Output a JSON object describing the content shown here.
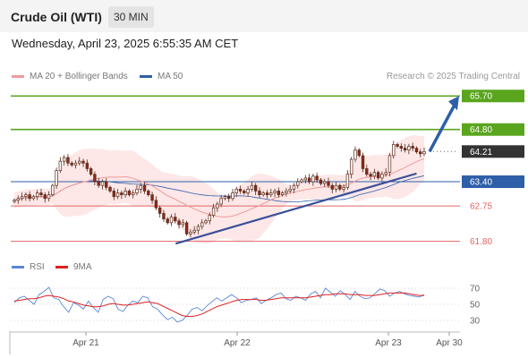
{
  "header": {
    "title": "Crude Oil (WTI)",
    "timeframe": "30 MIN"
  },
  "timestamp": "Wednesday, April 23, 2025 6:55:35 AM CET",
  "legend": {
    "ma20_bb": "MA 20 + Bollinger Bands",
    "ma50": "MA 50"
  },
  "credit": "Research © 2025 Trading Central",
  "rsi_legend": {
    "rsi": "RSI",
    "ma9": "9MA"
  },
  "colors": {
    "green": "#5aa51e",
    "red": "#e06666",
    "blue": "#2e5fa8",
    "dark": "#333333",
    "bb_fill": "#fde3e3",
    "ma20": "#f09a9a",
    "ma50": "#2e5fa8",
    "rsi": "#5b86d6",
    "rsi_ma": "#e02020"
  },
  "chart_data": [
    {
      "type": "candlestick",
      "title": "Crude Oil (WTI)",
      "interval": "30 MIN",
      "x_labels": [
        "Apr 21",
        "Apr 22",
        "Apr 23",
        "Apr 30"
      ],
      "ylim": [
        61.6,
        65.85
      ],
      "price_levels": [
        {
          "value": 65.7,
          "label": "65.70",
          "kind": "resistance",
          "color": "#5aa51e"
        },
        {
          "value": 64.8,
          "label": "64.80",
          "kind": "resistance",
          "color": "#5aa51e"
        },
        {
          "value": 64.21,
          "label": "64.21",
          "kind": "last_price",
          "color": "#333333"
        },
        {
          "value": 63.4,
          "label": "63.40",
          "kind": "pivot",
          "color": "#2e5fa8"
        },
        {
          "value": 62.75,
          "label": "62.75",
          "kind": "support",
          "color": "#e06666"
        },
        {
          "value": 61.8,
          "label": "61.80",
          "kind": "support",
          "color": "#e06666"
        }
      ],
      "close_series": [
        62.9,
        62.95,
        63.0,
        63.05,
        62.95,
        63.0,
        63.1,
        63.05,
        62.95,
        63.05,
        63.3,
        63.7,
        63.95,
        64.05,
        63.9,
        63.85,
        63.9,
        63.95,
        63.9,
        63.75,
        63.6,
        63.4,
        63.3,
        63.4,
        63.25,
        63.15,
        63.0,
        63.1,
        63.05,
        63.15,
        63.05,
        63.1,
        63.2,
        63.3,
        63.15,
        63.05,
        62.9,
        62.7,
        62.55,
        62.4,
        62.3,
        62.45,
        62.35,
        62.25,
        62.3,
        62.0,
        62.05,
        62.1,
        62.2,
        62.3,
        62.35,
        62.5,
        62.7,
        62.8,
        62.95,
        63.0,
        62.95,
        63.1,
        63.2,
        63.15,
        63.1,
        63.2,
        63.3,
        63.15,
        63.05,
        63.1,
        63.05,
        63.1,
        63.15,
        63.05,
        63.1,
        63.15,
        63.2,
        63.3,
        63.4,
        63.45,
        63.5,
        63.4,
        63.55,
        63.45,
        63.35,
        63.4,
        63.3,
        63.2,
        63.3,
        63.2,
        63.25,
        63.6,
        64.0,
        64.25,
        64.1,
        63.75,
        63.6,
        63.55,
        63.65,
        63.5,
        63.6,
        63.65,
        64.1,
        64.4,
        64.35,
        64.3,
        64.25,
        64.35,
        64.3,
        64.2,
        64.15,
        64.21
      ],
      "last_price": 64.21,
      "projection_target": 65.7
    },
    {
      "type": "line",
      "title": "RSI",
      "series": [
        {
          "name": "RSI",
          "values": [
            52,
            58,
            60,
            55,
            50,
            62,
            66,
            71,
            58,
            56,
            47,
            40,
            52,
            49,
            44,
            54,
            46,
            40,
            56,
            60,
            57,
            44,
            41,
            49,
            54,
            52,
            60,
            58,
            47,
            44,
            37,
            31,
            34,
            28,
            30,
            36,
            44,
            46,
            42,
            48,
            53,
            58,
            54,
            58,
            62,
            58,
            52,
            55,
            56,
            58,
            51,
            55,
            58,
            62,
            64,
            57,
            55,
            60,
            58,
            55,
            63,
            66,
            58,
            70,
            65,
            60,
            67,
            62,
            56,
            66,
            60,
            57,
            58,
            63,
            69,
            67,
            60,
            64,
            66,
            63,
            61,
            60,
            59,
            62
          ]
        },
        {
          "name": "9MA",
          "values": [
            54,
            55,
            56,
            57,
            57,
            58,
            60,
            61,
            60,
            59,
            57,
            54,
            53,
            51,
            49,
            48,
            47,
            47,
            48,
            50,
            51,
            50,
            49,
            49,
            50,
            51,
            52,
            53,
            52,
            51,
            48,
            45,
            42,
            39,
            36,
            35,
            35,
            36,
            38,
            41,
            44,
            47,
            49,
            51,
            53,
            55,
            56,
            56,
            56,
            56,
            55,
            55,
            56,
            57,
            58,
            58,
            58,
            58,
            58,
            58,
            59,
            60,
            61,
            62,
            62,
            63,
            63,
            63,
            62,
            62,
            62,
            61,
            61,
            61,
            62,
            63,
            64,
            64,
            64,
            64,
            63,
            62,
            61,
            61
          ]
        }
      ],
      "y_ticks": [
        30,
        50,
        70
      ],
      "ylim": [
        20,
        80
      ]
    }
  ]
}
